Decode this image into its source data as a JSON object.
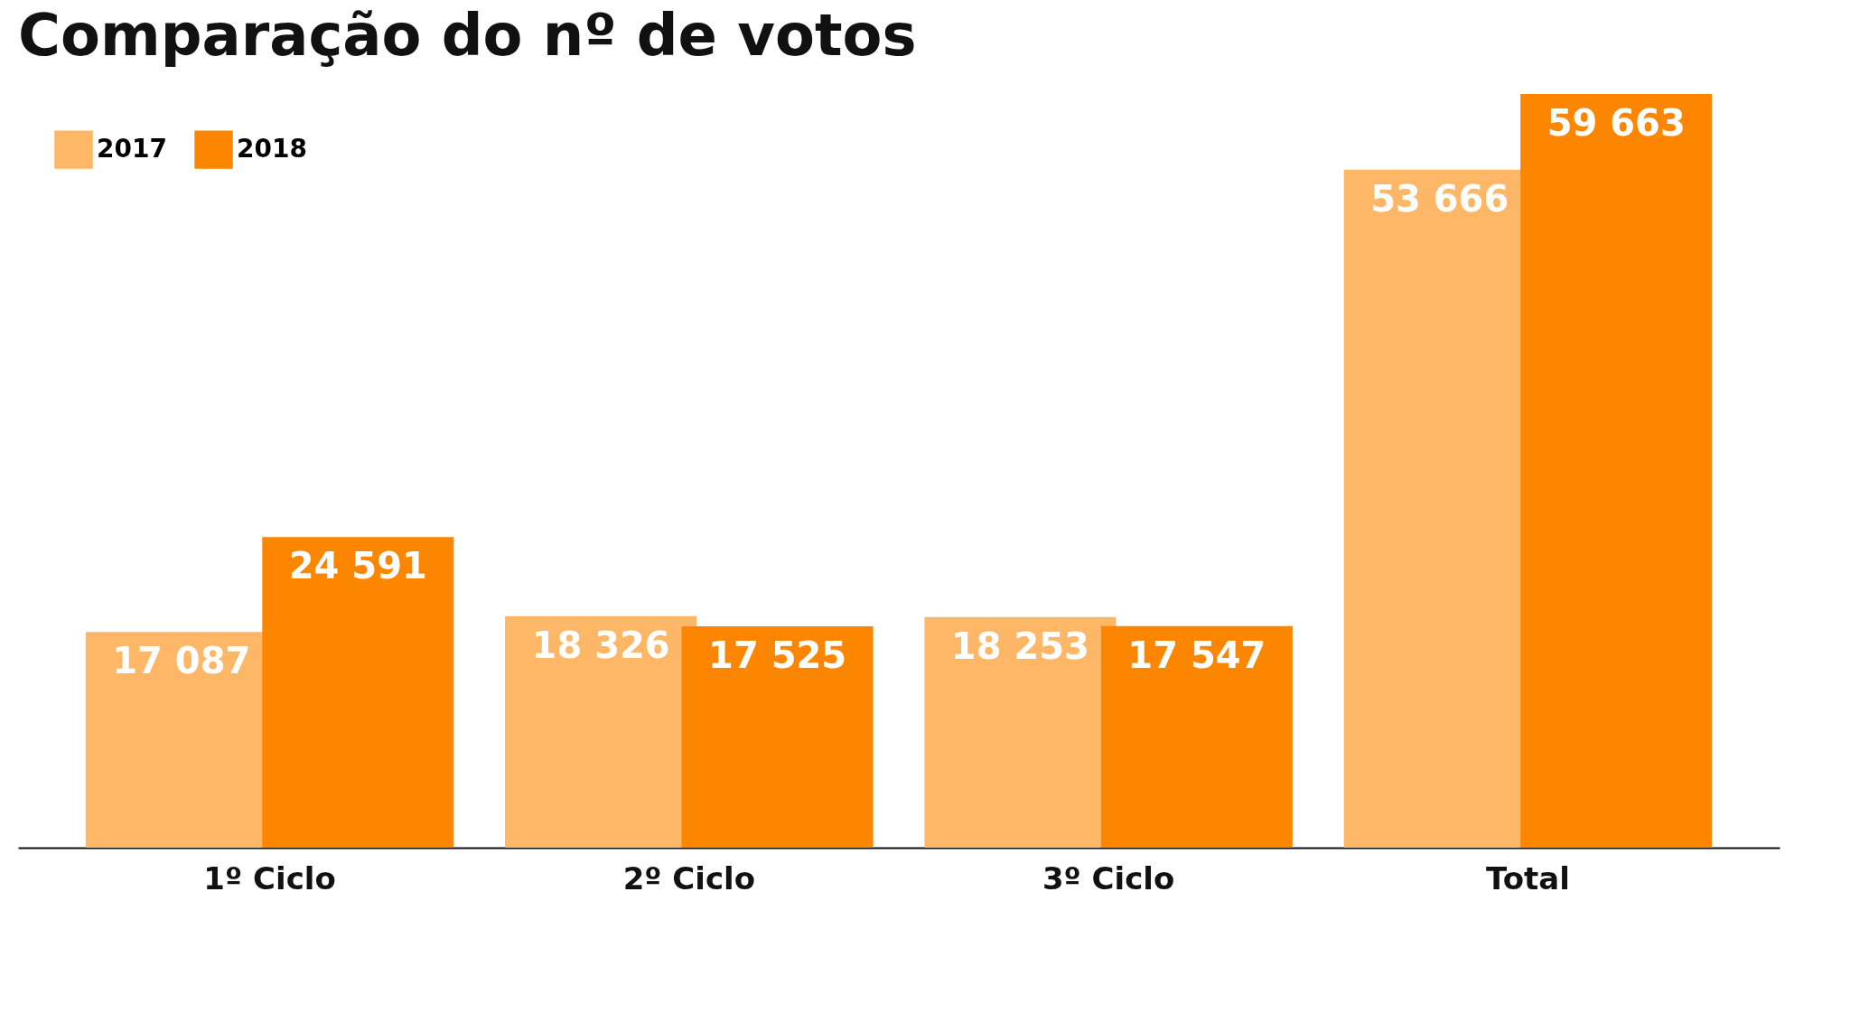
{
  "chart_data": {
    "type": "bar",
    "title": "Comparação do nº de votos",
    "categories": [
      "1º Ciclo",
      "2º Ciclo",
      "3º Ciclo",
      "Total"
    ],
    "series": [
      {
        "name": "2017",
        "color": "#fdb766",
        "values": [
          17087,
          18326,
          18253,
          53666
        ],
        "value_labels": [
          "17 087",
          "18 326",
          "18 253",
          "53 666"
        ]
      },
      {
        "name": "2018",
        "color": "#fc8600",
        "values": [
          24591,
          17525,
          17547,
          59663
        ],
        "value_labels": [
          "24 591",
          "17 525",
          "17 547",
          "59 663"
        ]
      }
    ],
    "legend": "top left",
    "grid": false
  }
}
